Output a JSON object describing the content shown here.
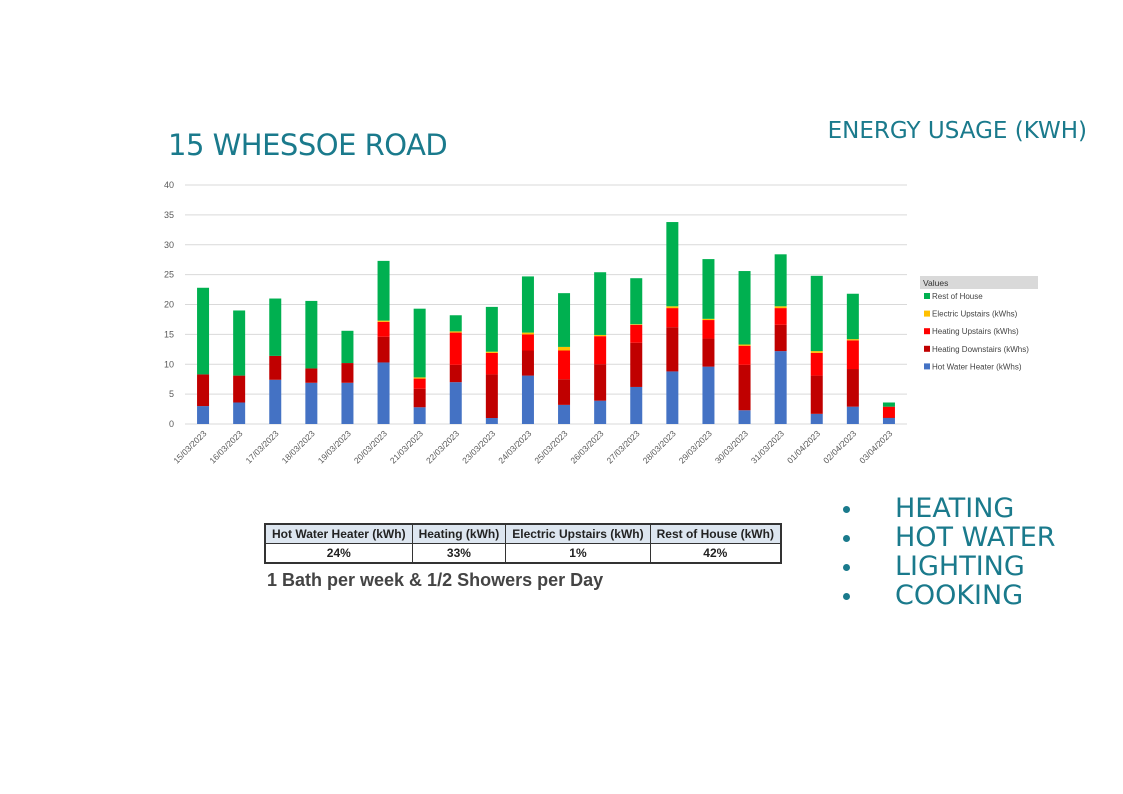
{
  "header": {
    "title": "15 WHESSOE ROAD",
    "subtitle": "ENERGY USAGE (KWH)"
  },
  "chart_data": {
    "type": "bar",
    "stacked": true,
    "title": "",
    "xlabel": "",
    "ylabel": "",
    "ylim": [
      0,
      40
    ],
    "yticks": [
      0,
      5,
      10,
      15,
      20,
      25,
      30,
      35,
      40
    ],
    "grid": true,
    "legend_title": "Values",
    "legend_position": "right",
    "categories": [
      "15/03/2023",
      "16/03/2023",
      "17/03/2023",
      "18/03/2023",
      "19/03/2023",
      "20/03/2023",
      "21/03/2023",
      "22/03/2023",
      "23/03/2023",
      "24/03/2023",
      "25/03/2023",
      "26/03/2023",
      "27/03/2023",
      "28/03/2023",
      "29/03/2023",
      "30/03/2023",
      "31/03/2023",
      "01/04/2023",
      "02/04/2023",
      "03/04/2023"
    ],
    "series": [
      {
        "name": "Hot Water Heater (kWhs)",
        "color": "#4472c4",
        "values": [
          3.0,
          3.6,
          7.4,
          6.9,
          6.9,
          10.3,
          2.8,
          7.0,
          1.0,
          8.1,
          3.2,
          3.9,
          6.2,
          8.8,
          9.6,
          2.3,
          12.2,
          1.7,
          2.9,
          1.0
        ]
      },
      {
        "name": "Heating Downstairs (kWhs)",
        "color": "#c00000",
        "values": [
          5.3,
          4.5,
          4.0,
          2.4,
          3.3,
          4.3,
          3.1,
          2.9,
          7.3,
          4.2,
          4.3,
          6.1,
          7.4,
          7.4,
          4.7,
          7.6,
          4.4,
          6.4,
          6.3,
          0.1
        ]
      },
      {
        "name": "Heating Upstairs (kWhs)",
        "color": "#ff0000",
        "values": [
          0,
          0,
          0,
          0,
          0,
          2.5,
          1.7,
          5.4,
          3.6,
          2.7,
          4.8,
          4.7,
          3.0,
          3.2,
          3.1,
          3.2,
          2.8,
          3.8,
          4.8,
          1.8
        ]
      },
      {
        "name": "Electric Upstairs (kWhs)",
        "color": "#ffc000",
        "values": [
          0,
          0,
          0,
          0,
          0,
          0.2,
          0.2,
          0.2,
          0.2,
          0.3,
          0.6,
          0.2,
          0.1,
          0.3,
          0.2,
          0.2,
          0.3,
          0.3,
          0.2,
          0
        ]
      },
      {
        "name": "Rest of House",
        "color": "#00b050",
        "values": [
          14.5,
          10.9,
          9.6,
          11.3,
          5.4,
          10.0,
          11.5,
          2.7,
          7.5,
          9.4,
          9.0,
          10.5,
          7.7,
          14.1,
          10.0,
          12.3,
          8.7,
          12.6,
          7.6,
          0.7
        ]
      }
    ],
    "legend_order": [
      "Rest of House",
      "Electric Upstairs (kWhs)",
      "Heating Upstairs (kWhs)",
      "Heating Downstairs (kWhs)",
      "Hot Water Heater (kWhs)"
    ]
  },
  "summary_table": {
    "headers": [
      "Hot Water Heater (kWh)",
      "Heating (kWh)",
      "Electric Upstairs (kWh)",
      "Rest of House (kWh)"
    ],
    "values": [
      "24%",
      "33%",
      "1%",
      "42%"
    ]
  },
  "note": "1 Bath per week & 1/2 Showers per Day",
  "bullets": [
    "HEATING",
    "HOT WATER",
    "LIGHTING",
    "COOKING"
  ]
}
